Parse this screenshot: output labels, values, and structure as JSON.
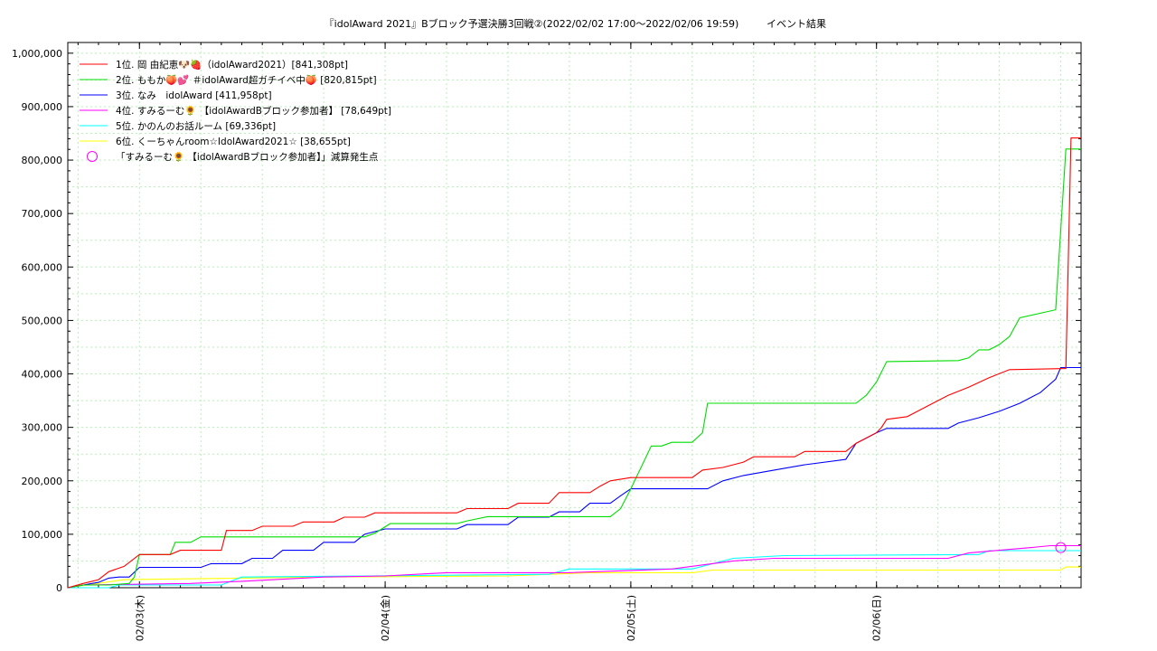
{
  "chart_data": {
    "type": "line",
    "title": "『idolAward 2021』Bブロック予選決勝3回戦②(2022/02/02 17:00～2022/02/06 19:59)",
    "subtitle": "イベント結果",
    "xlabel": "",
    "ylabel": "",
    "xlim": [
      "2022-02-02 17:00",
      "2022-02-06 19:59"
    ],
    "ylim": [
      0,
      1020000
    ],
    "grid": true,
    "legend_position": "top-left",
    "x_ticks": [
      {
        "label": "02/03(木)",
        "x": "2022-02-03 00:00"
      },
      {
        "label": "02/04(金)",
        "x": "2022-02-04 00:00"
      },
      {
        "label": "02/05(土)",
        "x": "2022-02-05 00:00"
      },
      {
        "label": "02/06(日)",
        "x": "2022-02-06 00:00"
      }
    ],
    "y_ticks": [
      {
        "label": "0",
        "value": 0
      },
      {
        "label": "100,000",
        "value": 100000
      },
      {
        "label": "200,000",
        "value": 200000
      },
      {
        "label": "300,000",
        "value": 300000
      },
      {
        "label": "400,000",
        "value": 400000
      },
      {
        "label": "500,000",
        "value": 500000
      },
      {
        "label": "600,000",
        "value": 600000
      },
      {
        "label": "700,000",
        "value": 700000
      },
      {
        "label": "800,000",
        "value": 800000
      },
      {
        "label": "900,000",
        "value": 900000
      },
      {
        "label": "1,000,000",
        "value": 1000000
      }
    ],
    "series": [
      {
        "name": "1位. 岡 由紀恵🐶🍓（idolAward2021）[841,308pt]",
        "color": "#ff0000",
        "points": [
          [
            "2022-02-02 17:00",
            0
          ],
          [
            "2022-02-02 18:30",
            8000
          ],
          [
            "2022-02-02 20:00",
            15000
          ],
          [
            "2022-02-02 21:00",
            30000
          ],
          [
            "2022-02-02 22:30",
            40000
          ],
          [
            "2022-02-03 00:00",
            62000
          ],
          [
            "2022-02-03 03:00",
            62000
          ],
          [
            "2022-02-03 04:00",
            70000
          ],
          [
            "2022-02-03 08:00",
            70000
          ],
          [
            "2022-02-03 08:30",
            107000
          ],
          [
            "2022-02-03 11:00",
            107000
          ],
          [
            "2022-02-03 12:00",
            115000
          ],
          [
            "2022-02-03 15:00",
            115000
          ],
          [
            "2022-02-03 16:00",
            123000
          ],
          [
            "2022-02-03 19:00",
            123000
          ],
          [
            "2022-02-03 20:00",
            132000
          ],
          [
            "2022-02-03 22:00",
            132000
          ],
          [
            "2022-02-03 23:00",
            140000
          ],
          [
            "2022-02-04 07:00",
            140000
          ],
          [
            "2022-02-04 08:00",
            148000
          ],
          [
            "2022-02-04 12:00",
            148000
          ],
          [
            "2022-02-04 13:00",
            158000
          ],
          [
            "2022-02-04 16:00",
            158000
          ],
          [
            "2022-02-04 17:00",
            178000
          ],
          [
            "2022-02-04 20:00",
            178000
          ],
          [
            "2022-02-04 21:00",
            190000
          ],
          [
            "2022-02-04 22:00",
            200000
          ],
          [
            "2022-02-05 00:00",
            206000
          ],
          [
            "2022-02-05 06:00",
            206000
          ],
          [
            "2022-02-05 07:00",
            220000
          ],
          [
            "2022-02-05 09:00",
            225000
          ],
          [
            "2022-02-05 11:00",
            235000
          ],
          [
            "2022-02-05 12:00",
            245000
          ],
          [
            "2022-02-05 16:00",
            245000
          ],
          [
            "2022-02-05 17:00",
            255000
          ],
          [
            "2022-02-05 21:00",
            255000
          ],
          [
            "2022-02-05 22:00",
            270000
          ],
          [
            "2022-02-05 23:00",
            280000
          ],
          [
            "2022-02-06 00:00",
            290000
          ],
          [
            "2022-02-06 00:30",
            300000
          ],
          [
            "2022-02-06 01:00",
            315000
          ],
          [
            "2022-02-06 03:00",
            320000
          ],
          [
            "2022-02-06 05:00",
            340000
          ],
          [
            "2022-02-06 07:00",
            360000
          ],
          [
            "2022-02-06 09:00",
            375000
          ],
          [
            "2022-02-06 11:00",
            393000
          ],
          [
            "2022-02-06 13:00",
            408000
          ],
          [
            "2022-02-06 18:30",
            410000
          ],
          [
            "2022-02-06 19:00",
            841308
          ],
          [
            "2022-02-06 19:59",
            841308
          ]
        ]
      },
      {
        "name": "2位. ももか🍑💕 ＃idolAward超ガチイベ中🍑 [820,815pt]",
        "color": "#00dd00",
        "points": [
          [
            "2022-02-02 17:00",
            0
          ],
          [
            "2022-02-02 18:30",
            5000
          ],
          [
            "2022-02-02 21:00",
            5000
          ],
          [
            "2022-02-02 23:00",
            8000
          ],
          [
            "2022-02-02 23:30",
            20000
          ],
          [
            "2022-02-03 00:00",
            62000
          ],
          [
            "2022-02-03 03:00",
            62000
          ],
          [
            "2022-02-03 03:30",
            85000
          ],
          [
            "2022-02-03 05:00",
            85000
          ],
          [
            "2022-02-03 06:00",
            95000
          ],
          [
            "2022-02-03 22:00",
            95000
          ],
          [
            "2022-02-03 23:00",
            102000
          ],
          [
            "2022-02-04 00:30",
            120000
          ],
          [
            "2022-02-04 07:00",
            120000
          ],
          [
            "2022-02-04 08:00",
            125000
          ],
          [
            "2022-02-04 10:00",
            133000
          ],
          [
            "2022-02-04 22:00",
            133000
          ],
          [
            "2022-02-04 23:00",
            148000
          ],
          [
            "2022-02-05 00:00",
            185000
          ],
          [
            "2022-02-05 01:00",
            225000
          ],
          [
            "2022-02-05 02:00",
            265000
          ],
          [
            "2022-02-05 03:00",
            265000
          ],
          [
            "2022-02-05 04:00",
            272000
          ],
          [
            "2022-02-05 06:00",
            272000
          ],
          [
            "2022-02-05 07:00",
            290000
          ],
          [
            "2022-02-05 07:30",
            345000
          ],
          [
            "2022-02-05 22:00",
            345000
          ],
          [
            "2022-02-05 23:00",
            360000
          ],
          [
            "2022-02-06 00:00",
            385000
          ],
          [
            "2022-02-06 01:00",
            423000
          ],
          [
            "2022-02-06 08:00",
            425000
          ],
          [
            "2022-02-06 09:00",
            430000
          ],
          [
            "2022-02-06 10:00",
            445000
          ],
          [
            "2022-02-06 11:00",
            445000
          ],
          [
            "2022-02-06 12:00",
            455000
          ],
          [
            "2022-02-06 13:00",
            470000
          ],
          [
            "2022-02-06 14:00",
            505000
          ],
          [
            "2022-02-06 17:30",
            520000
          ],
          [
            "2022-02-06 18:30",
            820815
          ],
          [
            "2022-02-06 19:59",
            820815
          ]
        ]
      },
      {
        "name": "3位. なみ　idolAward [411,958pt]",
        "color": "#0000ff",
        "points": [
          [
            "2022-02-02 17:00",
            0
          ],
          [
            "2022-02-02 18:30",
            5000
          ],
          [
            "2022-02-02 20:00",
            10000
          ],
          [
            "2022-02-02 21:00",
            18000
          ],
          [
            "2022-02-02 22:00",
            20000
          ],
          [
            "2022-02-02 23:00",
            20000
          ],
          [
            "2022-02-03 00:00",
            38000
          ],
          [
            "2022-02-03 06:00",
            38000
          ],
          [
            "2022-02-03 07:00",
            45000
          ],
          [
            "2022-02-03 10:00",
            45000
          ],
          [
            "2022-02-03 11:00",
            55000
          ],
          [
            "2022-02-03 13:00",
            55000
          ],
          [
            "2022-02-03 14:00",
            70000
          ],
          [
            "2022-02-03 17:00",
            70000
          ],
          [
            "2022-02-03 18:00",
            85000
          ],
          [
            "2022-02-03 21:00",
            85000
          ],
          [
            "2022-02-03 22:00",
            100000
          ],
          [
            "2022-02-04 00:00",
            110000
          ],
          [
            "2022-02-04 07:00",
            110000
          ],
          [
            "2022-02-04 08:00",
            118000
          ],
          [
            "2022-02-04 12:00",
            118000
          ],
          [
            "2022-02-04 13:00",
            132000
          ],
          [
            "2022-02-04 16:00",
            132000
          ],
          [
            "2022-02-04 17:00",
            142000
          ],
          [
            "2022-02-04 19:00",
            142000
          ],
          [
            "2022-02-04 20:00",
            158000
          ],
          [
            "2022-02-04 22:00",
            158000
          ],
          [
            "2022-02-04 23:00",
            172000
          ],
          [
            "2022-02-05 00:00",
            185000
          ],
          [
            "2022-02-05 07:30",
            185000
          ],
          [
            "2022-02-05 09:00",
            200000
          ],
          [
            "2022-02-05 11:00",
            210000
          ],
          [
            "2022-02-05 14:00",
            220000
          ],
          [
            "2022-02-05 17:00",
            230000
          ],
          [
            "2022-02-05 21:00",
            240000
          ],
          [
            "2022-02-05 22:00",
            270000
          ],
          [
            "2022-02-05 23:00",
            280000
          ],
          [
            "2022-02-06 00:00",
            290000
          ],
          [
            "2022-02-06 01:00",
            298000
          ],
          [
            "2022-02-06 07:00",
            298000
          ],
          [
            "2022-02-06 08:00",
            308000
          ],
          [
            "2022-02-06 10:00",
            318000
          ],
          [
            "2022-02-06 12:00",
            330000
          ],
          [
            "2022-02-06 14:00",
            345000
          ],
          [
            "2022-02-06 16:00",
            365000
          ],
          [
            "2022-02-06 17:30",
            390000
          ],
          [
            "2022-02-06 18:00",
            411958
          ],
          [
            "2022-02-06 19:59",
            411958
          ]
        ]
      },
      {
        "name": "4位. すみるーむ🌻 【idolAwardBブロック参加者】 [78,649pt]",
        "color": "#ff00ff",
        "points": [
          [
            "2022-02-02 17:00",
            0
          ],
          [
            "2022-02-02 18:30",
            5000
          ],
          [
            "2022-02-03 05:00",
            8000
          ],
          [
            "2022-02-03 10:00",
            12000
          ],
          [
            "2022-02-03 18:00",
            20000
          ],
          [
            "2022-02-04 00:00",
            22000
          ],
          [
            "2022-02-04 06:00",
            28000
          ],
          [
            "2022-02-04 18:00",
            28000
          ],
          [
            "2022-02-05 04:00",
            35000
          ],
          [
            "2022-02-05 10:00",
            50000
          ],
          [
            "2022-02-05 14:00",
            55000
          ],
          [
            "2022-02-06 07:00",
            55000
          ],
          [
            "2022-02-06 09:00",
            65000
          ],
          [
            "2022-02-06 12:00",
            70000
          ],
          [
            "2022-02-06 15:00",
            75000
          ],
          [
            "2022-02-06 17:00",
            78649
          ],
          [
            "2022-02-06 19:59",
            78649
          ]
        ]
      },
      {
        "name": "5位. かのんのお話ルーム [69,336pt]",
        "color": "#00ffff",
        "points": [
          [
            "2022-02-02 17:00",
            0
          ],
          [
            "2022-02-02 21:00",
            0
          ],
          [
            "2022-02-02 22:00",
            5000
          ],
          [
            "2022-02-03 08:00",
            5000
          ],
          [
            "2022-02-03 10:00",
            20000
          ],
          [
            "2022-02-03 22:00",
            22000
          ],
          [
            "2022-02-04 16:00",
            25000
          ],
          [
            "2022-02-04 18:00",
            35000
          ],
          [
            "2022-02-05 06:00",
            35000
          ],
          [
            "2022-02-05 10:00",
            55000
          ],
          [
            "2022-02-05 15:00",
            60000
          ],
          [
            "2022-02-06 10:00",
            62000
          ],
          [
            "2022-02-06 11:00",
            69336
          ],
          [
            "2022-02-06 19:59",
            69336
          ]
        ]
      },
      {
        "name": "6位. くーちゃんroom☆IdolAward2021☆ [38,655pt]",
        "color": "#ffff00",
        "points": [
          [
            "2022-02-02 17:00",
            0
          ],
          [
            "2022-02-02 22:30",
            15000
          ],
          [
            "2022-02-03 18:00",
            20000
          ],
          [
            "2022-02-04 12:00",
            22000
          ],
          [
            "2022-02-04 20:00",
            28000
          ],
          [
            "2022-02-05 06:00",
            28000
          ],
          [
            "2022-02-05 08:00",
            33000
          ],
          [
            "2022-02-06 18:00",
            33000
          ],
          [
            "2022-02-06 18:30",
            38655
          ],
          [
            "2022-02-06 19:59",
            38655
          ]
        ]
      }
    ],
    "markers": [
      {
        "name": "「すみるーむ🌻 【idolAwardBブロック参加者】」減算発生点",
        "color": "#ff00ff",
        "shape": "circle",
        "x": "2022-02-06 18:00",
        "y": 75000
      }
    ]
  }
}
